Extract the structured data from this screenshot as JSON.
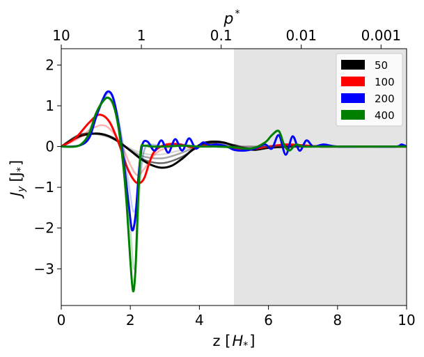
{
  "chart_data": {
    "type": "line",
    "title": "",
    "xlabel": "z [",
    "xlabel_unit": "H",
    "xlabel_sub": "*",
    "xlabel_close": "]",
    "ylabel": "J",
    "ylabel_sub": "y",
    "ylabel_unit": "[J",
    "ylabel_unit_sub": "*",
    "ylabel_close": "]",
    "top_axis_label": "p",
    "top_axis_label_sup": "*",
    "xlim": [
      0,
      10
    ],
    "ylim": [
      -3.9,
      2.4
    ],
    "x_ticks": [
      {
        "value": 0,
        "label": "0"
      },
      {
        "value": 2,
        "label": "2"
      },
      {
        "value": 4,
        "label": "4"
      },
      {
        "value": 6,
        "label": "6"
      },
      {
        "value": 8,
        "label": "8"
      },
      {
        "value": 10,
        "label": "10"
      }
    ],
    "y_ticks": [
      {
        "value": 2,
        "label": "2"
      },
      {
        "value": 1,
        "label": "1"
      },
      {
        "value": 0,
        "label": "0"
      },
      {
        "value": -1,
        "label": "−1"
      },
      {
        "value": -2,
        "label": "−2"
      },
      {
        "value": -3,
        "label": "−3"
      }
    ],
    "top_ticks": [
      {
        "z": 0.0,
        "label": "10"
      },
      {
        "z": 2.32,
        "label": "1"
      },
      {
        "z": 4.63,
        "label": "0.1"
      },
      {
        "z": 6.95,
        "label": "0.01"
      },
      {
        "z": 9.26,
        "label": "0.001"
      }
    ],
    "shaded_region": {
      "x": [
        5,
        10
      ],
      "color": "#e4e4e4"
    },
    "legend_position": "top-right",
    "legend": [
      {
        "label": "50",
        "color": "#000000"
      },
      {
        "label": "100",
        "color": "#ff0000"
      },
      {
        "label": "200",
        "color": "#0000ff"
      },
      {
        "label": "400",
        "color": "#008000"
      }
    ],
    "series": [
      {
        "name": "50-a",
        "color": "#000000",
        "opacity": 0.15,
        "x": [
          0,
          0.5,
          1.0,
          1.5,
          2.0,
          2.3,
          2.6,
          3.0,
          3.5,
          4.0,
          4.5,
          5.0,
          5.5,
          6.0,
          7.0,
          8.0,
          9.0,
          10.0
        ],
        "y": [
          0,
          0.25,
          0.3,
          0.18,
          -0.05,
          -0.15,
          -0.2,
          -0.18,
          -0.08,
          0.02,
          0.05,
          0.0,
          -0.05,
          -0.02,
          0.0,
          0.0,
          0.0,
          0.0
        ]
      },
      {
        "name": "50-b",
        "color": "#000000",
        "opacity": 0.35,
        "x": [
          0,
          0.5,
          1.0,
          1.5,
          2.0,
          2.3,
          2.6,
          3.0,
          3.5,
          4.0,
          4.5,
          5.0,
          5.5,
          6.0,
          7.0,
          8.0,
          9.0,
          10.0
        ],
        "y": [
          0,
          0.27,
          0.31,
          0.2,
          -0.08,
          -0.22,
          -0.28,
          -0.28,
          -0.15,
          0.02,
          0.08,
          0.02,
          -0.05,
          -0.02,
          0.0,
          0.0,
          0.0,
          0.0
        ]
      },
      {
        "name": "50-c",
        "color": "#000000",
        "opacity": 0.6,
        "x": [
          0,
          0.5,
          1.0,
          1.5,
          2.0,
          2.3,
          2.6,
          3.0,
          3.5,
          4.0,
          4.5,
          5.0,
          5.5,
          6.0,
          7.0,
          8.0,
          9.0,
          10.0
        ],
        "y": [
          0,
          0.28,
          0.32,
          0.22,
          -0.1,
          -0.28,
          -0.38,
          -0.4,
          -0.25,
          0.0,
          0.1,
          0.04,
          -0.06,
          -0.03,
          0.0,
          0.0,
          0.0,
          0.0
        ]
      },
      {
        "name": "50",
        "color": "#000000",
        "opacity": 1.0,
        "x": [
          0,
          0.3,
          0.6,
          1.0,
          1.3,
          1.6,
          2.0,
          2.3,
          2.6,
          2.9,
          3.2,
          3.5,
          3.8,
          4.1,
          4.4,
          4.7,
          5.0,
          5.3,
          5.6,
          6.0,
          6.5,
          7.0,
          7.5,
          8.0,
          9.0,
          10.0
        ],
        "y": [
          0,
          0.15,
          0.27,
          0.32,
          0.28,
          0.15,
          -0.1,
          -0.3,
          -0.45,
          -0.52,
          -0.47,
          -0.3,
          -0.08,
          0.08,
          0.12,
          0.1,
          0.02,
          -0.05,
          -0.08,
          -0.03,
          0.0,
          0.02,
          0.0,
          0.0,
          0.0,
          0.0
        ]
      },
      {
        "name": "100-a",
        "color": "#ff0000",
        "opacity": 0.3,
        "x": [
          0,
          0.5,
          0.9,
          1.3,
          1.7,
          2.0,
          2.2,
          2.4,
          2.7,
          3.0,
          3.5,
          4.0,
          4.5,
          5.0,
          6.0,
          7.0,
          8.0,
          9.0,
          10.0
        ],
        "y": [
          0,
          0.2,
          0.45,
          0.5,
          0.1,
          -0.45,
          -0.7,
          -0.55,
          -0.2,
          -0.05,
          0.03,
          0.0,
          0.0,
          0.0,
          0.0,
          0.0,
          0.0,
          0.0,
          0.0
        ]
      },
      {
        "name": "100",
        "color": "#ff0000",
        "opacity": 1.0,
        "x": [
          0,
          0.4,
          0.8,
          1.1,
          1.4,
          1.7,
          1.9,
          2.1,
          2.25,
          2.4,
          2.55,
          2.7,
          3.0,
          3.4,
          3.8,
          4.2,
          4.6,
          5.0,
          5.5,
          6.0,
          6.5,
          7.0,
          7.5,
          8.0,
          9.0,
          10.0
        ],
        "y": [
          0,
          0.2,
          0.58,
          0.78,
          0.6,
          0.0,
          -0.5,
          -0.82,
          -0.9,
          -0.78,
          -0.4,
          -0.12,
          0.04,
          0.06,
          -0.02,
          0.02,
          0.02,
          -0.04,
          -0.06,
          0.0,
          0.05,
          0.03,
          0.0,
          0.0,
          0.0,
          0.0
        ]
      },
      {
        "name": "200-a",
        "color": "#0000ff",
        "opacity": 0.2,
        "x": [
          0,
          0.6,
          0.9,
          1.2,
          1.4,
          1.6,
          1.8,
          1.95,
          2.1,
          2.25,
          2.4,
          2.6,
          3.0,
          3.5,
          4.0,
          5.0,
          6.0,
          7.0,
          8.0,
          9.0,
          10.0
        ],
        "y": [
          0,
          0.05,
          0.55,
          1.1,
          1.3,
          0.9,
          0.0,
          -0.9,
          -1.6,
          -1.0,
          -0.1,
          0.05,
          0.0,
          0.05,
          0.0,
          0.0,
          0.0,
          0.0,
          0.0,
          0.0,
          0.0
        ]
      },
      {
        "name": "200",
        "color": "#0000ff",
        "opacity": 1.0,
        "x": [
          0,
          0.5,
          0.8,
          1.0,
          1.2,
          1.35,
          1.5,
          1.65,
          1.8,
          1.95,
          2.05,
          2.15,
          2.25,
          2.35,
          2.5,
          2.7,
          2.9,
          3.1,
          3.3,
          3.5,
          3.7,
          3.9,
          4.1,
          4.3,
          4.5,
          4.8,
          5.0,
          5.3,
          5.6,
          5.9,
          6.1,
          6.3,
          6.5,
          6.7,
          6.9,
          7.1,
          7.3,
          7.6,
          8.0,
          9.0,
          9.7,
          9.85,
          10.0
        ],
        "y": [
          0,
          0.02,
          0.2,
          0.7,
          1.15,
          1.35,
          1.2,
          0.6,
          -0.3,
          -1.4,
          -2.05,
          -1.7,
          -0.6,
          0.05,
          0.12,
          -0.1,
          0.15,
          -0.15,
          0.18,
          -0.1,
          0.2,
          -0.05,
          0.1,
          0.03,
          0.05,
          0.0,
          -0.08,
          -0.1,
          -0.05,
          0.05,
          -0.05,
          0.28,
          -0.2,
          0.25,
          -0.1,
          0.15,
          0.0,
          0.05,
          0.0,
          0.0,
          0.0,
          0.05,
          0.0
        ]
      },
      {
        "name": "400-a",
        "color": "#008000",
        "opacity": 0.25,
        "x": [
          0,
          0.6,
          0.9,
          1.1,
          1.3,
          1.5,
          1.7,
          1.85,
          2.0,
          2.1,
          2.2,
          2.3,
          2.45,
          2.7,
          3.0,
          3.5,
          4.0,
          5.0,
          6.0,
          7.0,
          8.0,
          9.0,
          10.0
        ],
        "y": [
          0,
          0.05,
          0.6,
          1.0,
          1.2,
          1.0,
          0.4,
          -0.5,
          -2.0,
          -3.0,
          -2.4,
          -0.6,
          0.0,
          0.02,
          0.0,
          0.02,
          0.0,
          0.0,
          0.0,
          0.0,
          0.0,
          0.0,
          0.0
        ]
      },
      {
        "name": "400",
        "color": "#008000",
        "opacity": 1.0,
        "x": [
          0,
          0.5,
          0.8,
          1.0,
          1.2,
          1.35,
          1.5,
          1.65,
          1.8,
          1.9,
          2.0,
          2.08,
          2.15,
          2.22,
          2.3,
          2.4,
          2.6,
          3.0,
          3.5,
          4.0,
          4.5,
          5.0,
          5.5,
          5.9,
          6.1,
          6.3,
          6.45,
          6.6,
          6.8,
          7.0,
          7.5,
          8.0,
          9.0,
          10.0
        ],
        "y": [
          0,
          0.02,
          0.3,
          0.8,
          1.1,
          1.2,
          1.05,
          0.5,
          -0.5,
          -1.5,
          -2.8,
          -3.55,
          -3.0,
          -1.4,
          -0.1,
          0.02,
          0.0,
          0.0,
          0.02,
          0.0,
          0.0,
          -0.02,
          -0.05,
          0.1,
          0.28,
          0.38,
          0.05,
          -0.1,
          0.05,
          0.0,
          0.0,
          0.0,
          0.0,
          0.0
        ]
      }
    ]
  }
}
